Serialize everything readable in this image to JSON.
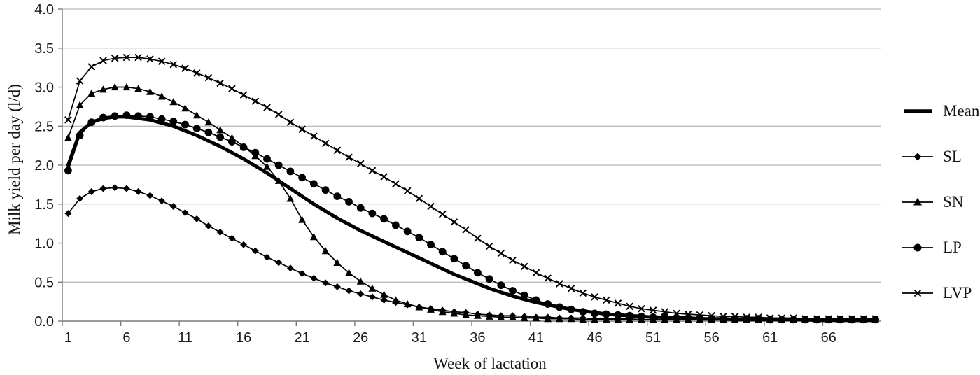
{
  "chart_data": {
    "type": "line",
    "title": "",
    "xlabel": "Week of lactation",
    "ylabel": "Milk yield per day (l/d)",
    "grid": "horizontal",
    "legend_position": "right",
    "ylim": [
      0.0,
      4.0
    ],
    "x_range": [
      1,
      70
    ],
    "y_tick_labels": [
      "0.0",
      "0.5",
      "1.0",
      "1.5",
      "2.0",
      "2.5",
      "3.0",
      "3.5",
      "4.0"
    ],
    "x_tick_labels": [
      1,
      6,
      11,
      16,
      21,
      26,
      31,
      36,
      41,
      46,
      51,
      56,
      61,
      66
    ],
    "colors": {
      "series": "#000000",
      "gridline": "#a6a6a6",
      "axis": "#7a7a7a",
      "background": "#ffffff"
    },
    "x_weeks": [
      1,
      2,
      3,
      4,
      5,
      6,
      7,
      8,
      9,
      10,
      11,
      12,
      13,
      14,
      15,
      16,
      17,
      18,
      19,
      20,
      21,
      22,
      23,
      24,
      25,
      26,
      27,
      28,
      29,
      30,
      31,
      32,
      33,
      34,
      35,
      36,
      37,
      38,
      39,
      40,
      41,
      42,
      43,
      44,
      45,
      46,
      47,
      48,
      49,
      50,
      51,
      52,
      53,
      54,
      55,
      56,
      57,
      58,
      59,
      60,
      61,
      62,
      63,
      64,
      65,
      66,
      67,
      68,
      69,
      70
    ],
    "series": [
      {
        "name": "Mean",
        "marker": "none",
        "line": "thick",
        "values": [
          2.0,
          2.42,
          2.55,
          2.6,
          2.62,
          2.62,
          2.6,
          2.58,
          2.54,
          2.5,
          2.44,
          2.38,
          2.31,
          2.24,
          2.16,
          2.08,
          1.99,
          1.9,
          1.8,
          1.7,
          1.6,
          1.5,
          1.41,
          1.32,
          1.24,
          1.16,
          1.09,
          1.02,
          0.95,
          0.88,
          0.81,
          0.74,
          0.67,
          0.6,
          0.54,
          0.48,
          0.42,
          0.37,
          0.32,
          0.28,
          0.24,
          0.21,
          0.18,
          0.15,
          0.13,
          0.11,
          0.09,
          0.08,
          0.07,
          0.06,
          0.05,
          0.05,
          0.04,
          0.04,
          0.03,
          0.03,
          0.03,
          0.02,
          0.02,
          0.02,
          0.02,
          0.02,
          0.02,
          0.02,
          0.01,
          0.01,
          0.01,
          0.01,
          0.01,
          0.01
        ]
      },
      {
        "name": "SL",
        "marker": "diamond",
        "line": "thin",
        "values": [
          1.38,
          1.57,
          1.66,
          1.7,
          1.71,
          1.7,
          1.66,
          1.61,
          1.54,
          1.47,
          1.39,
          1.31,
          1.22,
          1.14,
          1.06,
          0.98,
          0.9,
          0.82,
          0.75,
          0.68,
          0.61,
          0.55,
          0.49,
          0.44,
          0.39,
          0.35,
          0.31,
          0.27,
          0.24,
          0.21,
          0.18,
          0.16,
          0.14,
          0.12,
          0.11,
          0.09,
          0.08,
          0.07,
          0.07,
          0.06,
          0.05,
          0.05,
          0.04,
          0.04,
          0.04,
          0.03,
          0.03,
          0.03,
          0.03,
          0.02,
          0.02,
          0.02,
          0.02,
          0.02,
          0.02,
          0.02,
          0.02,
          0.02,
          0.02,
          0.02,
          0.02,
          0.02,
          0.02,
          0.02,
          0.02,
          0.02,
          0.02,
          0.02,
          0.02,
          0.02
        ]
      },
      {
        "name": "SN",
        "marker": "triangle-up",
        "line": "thin",
        "values": [
          2.35,
          2.77,
          2.92,
          2.97,
          3.0,
          3.0,
          2.98,
          2.94,
          2.88,
          2.81,
          2.73,
          2.64,
          2.55,
          2.45,
          2.35,
          2.24,
          2.12,
          1.98,
          1.8,
          1.57,
          1.3,
          1.08,
          0.9,
          0.75,
          0.62,
          0.51,
          0.42,
          0.34,
          0.27,
          0.22,
          0.18,
          0.15,
          0.12,
          0.1,
          0.08,
          0.07,
          0.06,
          0.05,
          0.05,
          0.04,
          0.04,
          0.03,
          0.03,
          0.03,
          0.02,
          0.02,
          0.02,
          0.02,
          0.02,
          0.02,
          0.02,
          0.02,
          0.02,
          0.02,
          0.02,
          0.02,
          0.02,
          0.02,
          0.02,
          0.02,
          0.02,
          0.02,
          0.02,
          0.02,
          0.02,
          0.02,
          0.02,
          0.02,
          0.02,
          0.02
        ]
      },
      {
        "name": "LP",
        "marker": "circle",
        "line": "thin",
        "values": [
          1.93,
          2.38,
          2.55,
          2.61,
          2.63,
          2.64,
          2.63,
          2.62,
          2.59,
          2.56,
          2.52,
          2.47,
          2.42,
          2.36,
          2.3,
          2.23,
          2.16,
          2.08,
          2.0,
          1.92,
          1.84,
          1.76,
          1.68,
          1.6,
          1.53,
          1.45,
          1.38,
          1.31,
          1.23,
          1.15,
          1.07,
          0.98,
          0.89,
          0.8,
          0.71,
          0.62,
          0.54,
          0.46,
          0.39,
          0.33,
          0.27,
          0.22,
          0.18,
          0.15,
          0.12,
          0.1,
          0.09,
          0.08,
          0.07,
          0.06,
          0.05,
          0.05,
          0.04,
          0.04,
          0.04,
          0.03,
          0.03,
          0.03,
          0.03,
          0.03,
          0.02,
          0.02,
          0.02,
          0.02,
          0.02,
          0.02,
          0.02,
          0.02,
          0.02,
          0.02
        ]
      },
      {
        "name": "LVP",
        "marker": "x",
        "line": "thin",
        "values": [
          2.58,
          3.08,
          3.26,
          3.34,
          3.37,
          3.38,
          3.38,
          3.36,
          3.33,
          3.29,
          3.24,
          3.18,
          3.12,
          3.05,
          2.98,
          2.9,
          2.82,
          2.74,
          2.65,
          2.55,
          2.46,
          2.37,
          2.28,
          2.19,
          2.1,
          2.02,
          1.93,
          1.85,
          1.76,
          1.67,
          1.57,
          1.47,
          1.37,
          1.27,
          1.17,
          1.06,
          0.96,
          0.87,
          0.78,
          0.7,
          0.62,
          0.55,
          0.48,
          0.42,
          0.36,
          0.31,
          0.27,
          0.23,
          0.19,
          0.16,
          0.14,
          0.12,
          0.1,
          0.09,
          0.08,
          0.07,
          0.06,
          0.06,
          0.05,
          0.05,
          0.04,
          0.04,
          0.04,
          0.03,
          0.03,
          0.03,
          0.03,
          0.03,
          0.03,
          0.03
        ]
      }
    ]
  }
}
